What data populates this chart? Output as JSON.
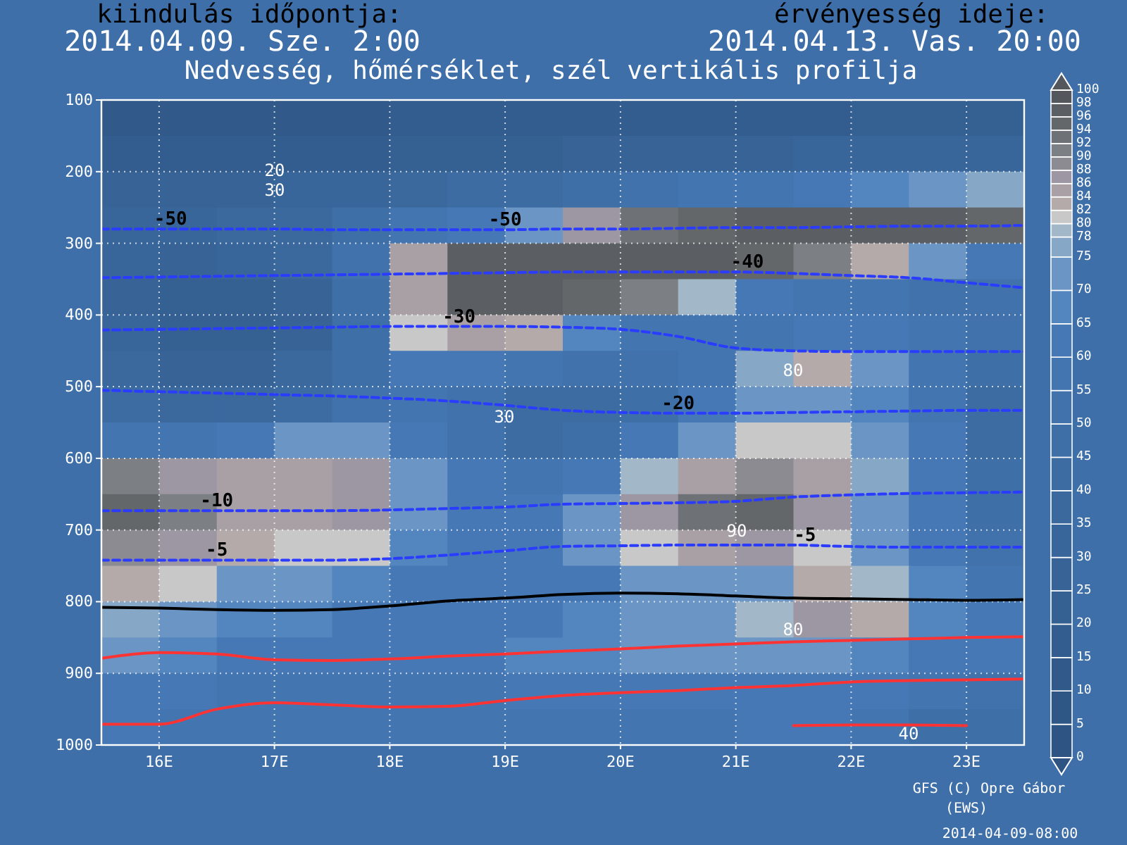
{
  "chart_data": [
    {
      "type": "heatmap",
      "title": "Nedvesség, hőmérséklet, szél vertikális profilja",
      "annotations": [
        "kiindulás időpontja:",
        "2014.04.09. Sze. 2:00",
        "érvényesség ideje:",
        "2014.04.13. Vas. 20:00",
        "GFS (C) Opre Gábor",
        "(EWS)",
        "2014-04-09-08:00",
        "20",
        "30",
        "30",
        "80",
        "90",
        "80",
        "40"
      ],
      "categories": [
        null,
        null,
        null,
        null,
        null,
        null,
        null,
        null,
        null,
        null,
        null,
        null,
        null,
        null,
        null,
        null
      ],
      "y_categories": [
        null,
        null,
        null,
        null,
        null,
        null,
        null,
        null,
        null,
        null,
        null,
        null,
        null,
        null,
        null,
        null,
        null,
        null
      ],
      "cells": [
        [
          12,
          12,
          12,
          12,
          13,
          15,
          15,
          15,
          15,
          16,
          18,
          18,
          18,
          20,
          20,
          20
        ],
        [
          16,
          16,
          16,
          17,
          18,
          20,
          22,
          22,
          25,
          26,
          28,
          28,
          30,
          30,
          32,
          34
        ],
        [
          28,
          28,
          28,
          30,
          32,
          35,
          40,
          42,
          45,
          50,
          55,
          58,
          62,
          65,
          70,
          75
        ],
        [
          34,
          34,
          35,
          38,
          48,
          55,
          62,
          70,
          86,
          92,
          95,
          96,
          96,
          96,
          96,
          94
        ],
        [
          30,
          28,
          30,
          35,
          50,
          84,
          96,
          97,
          97,
          96,
          96,
          95,
          90,
          82,
          72,
          62
        ],
        [
          28,
          20,
          20,
          28,
          45,
          84,
          96,
          96,
          94,
          90,
          78,
          62,
          58,
          55,
          52,
          50
        ],
        [
          32,
          20,
          20,
          28,
          45,
          80,
          84,
          82,
          65,
          55,
          55,
          58,
          62,
          60,
          55,
          50
        ],
        [
          36,
          28,
          28,
          35,
          48,
          60,
          62,
          55,
          50,
          52,
          58,
          75,
          82,
          72,
          55,
          48
        ],
        [
          42,
          38,
          36,
          40,
          52,
          56,
          52,
          42,
          40,
          48,
          60,
          72,
          74,
          68,
          58,
          42
        ],
        [
          55,
          58,
          62,
          70,
          72,
          60,
          50,
          42,
          45,
          62,
          72,
          80,
          80,
          72,
          62,
          44
        ],
        [
          90,
          86,
          84,
          85,
          86,
          70,
          62,
          55,
          62,
          78,
          84,
          88,
          84,
          76,
          64,
          46
        ],
        [
          95,
          90,
          84,
          85,
          86,
          70,
          64,
          60,
          72,
          86,
          92,
          94,
          86,
          74,
          62,
          48
        ],
        [
          88,
          86,
          82,
          80,
          80,
          66,
          62,
          60,
          70,
          80,
          84,
          86,
          80,
          70,
          62,
          52
        ],
        [
          82,
          80,
          74,
          70,
          68,
          64,
          62,
          60,
          64,
          70,
          72,
          74,
          82,
          78,
          66,
          58
        ],
        [
          76,
          72,
          68,
          66,
          64,
          62,
          62,
          64,
          66,
          70,
          72,
          78,
          86,
          82,
          68,
          62
        ],
        [
          70,
          66,
          64,
          64,
          62,
          62,
          62,
          66,
          68,
          70,
          72,
          72,
          72,
          68,
          64,
          60
        ],
        [
          64,
          60,
          58,
          58,
          58,
          58,
          58,
          60,
          62,
          64,
          64,
          64,
          63,
          60,
          58,
          54
        ],
        [
          60,
          56,
          55,
          55,
          55,
          55,
          55,
          56,
          57,
          58,
          58,
          60,
          62,
          55,
          46,
          45
        ]
      ],
      "clim": [
        0,
        100
      ],
      "cticks": [
        0,
        5,
        10,
        15,
        20,
        25,
        30,
        35,
        40,
        45,
        50,
        55,
        60,
        65,
        70,
        75,
        78,
        80,
        82,
        84,
        86,
        88,
        90,
        92,
        94,
        96,
        98,
        100
      ],
      "colors": [
        "#2d5482",
        "#2f5786",
        "#315a8a",
        "#335d8e",
        "#356092",
        "#376396",
        "#39669a",
        "#3b699e",
        "#3d6ca2",
        "#3f6fa7",
        "#4172ab",
        "#4375b0",
        "#4678b5",
        "#5385be",
        "#6a95c4",
        "#86a7c6",
        "#a2b7c8",
        "#c8c8c8",
        "#b3aaa9",
        "#a9a0a5",
        "#9c97a2",
        "#8c8b92",
        "#7c7f84",
        "#6e7276",
        "#63676a",
        "#5b5f63",
        "#54585c"
      ]
    },
    {
      "type": "line",
      "x": [
        15.5,
        16,
        16.5,
        17,
        17.5,
        18,
        18.5,
        19,
        19.5,
        20,
        20.5,
        21,
        21.5,
        22,
        22.5,
        23,
        23.5
      ],
      "xlim": [
        15.5,
        23.5
      ],
      "xticks": [
        {
          "value": 16,
          "label": "16E"
        },
        {
          "value": 17,
          "label": "17E"
        },
        {
          "value": 18,
          "label": "18E"
        },
        {
          "value": 19,
          "label": "19E"
        },
        {
          "value": 20,
          "label": "20E"
        },
        {
          "value": 21,
          "label": "21E"
        },
        {
          "value": 22,
          "label": "22E"
        },
        {
          "value": 23,
          "label": "23E"
        }
      ],
      "ylim": [
        1000,
        100
      ],
      "yticks": [
        100,
        200,
        300,
        400,
        500,
        600,
        700,
        800,
        900,
        1000
      ],
      "grid": true,
      "annotations": [
        {
          "text": "-50",
          "x": 16.1,
          "y": 280
        },
        {
          "text": "-50",
          "x": 19.0,
          "y": 281
        },
        {
          "text": "-40",
          "x": 21.1,
          "y": 340
        },
        {
          "text": "-30",
          "x": 18.6,
          "y": 416
        },
        {
          "text": "-20",
          "x": 20.5,
          "y": 537
        },
        {
          "text": "-10",
          "x": 16.5,
          "y": 673
        },
        {
          "text": "-5",
          "x": 16.5,
          "y": 742
        },
        {
          "text": "-5",
          "x": 21.6,
          "y": 721
        }
      ],
      "series": [
        {
          "type": "line",
          "color": "#2a3cff",
          "line_style": "dashed",
          "values": [
            280,
            280,
            280,
            280,
            281,
            281,
            281,
            281,
            280,
            280,
            279,
            278,
            278,
            277,
            276,
            276,
            275
          ]
        },
        {
          "type": "line",
          "color": "#2a3cff",
          "line_style": "dashed",
          "values": [
            348,
            347,
            346,
            345,
            344,
            343,
            342,
            341,
            340,
            340,
            340,
            340,
            342,
            345,
            348,
            355,
            362
          ]
        },
        {
          "type": "line",
          "color": "#2a3cff",
          "line_style": "dashed",
          "values": [
            421,
            420,
            419,
            418,
            417,
            416,
            416,
            416,
            417,
            420,
            430,
            446,
            450,
            451,
            451,
            451,
            451
          ]
        },
        {
          "type": "line",
          "color": "#2a3cff",
          "line_style": "dashed",
          "values": [
            505,
            507,
            509,
            511,
            513,
            516,
            520,
            526,
            533,
            536,
            537,
            537,
            536,
            535,
            534,
            533,
            533
          ]
        },
        {
          "type": "line",
          "color": "#2a3cff",
          "line_style": "dashed",
          "values": [
            673,
            673,
            673,
            673,
            673,
            672,
            670,
            668,
            664,
            663,
            662,
            660,
            654,
            651,
            649,
            648,
            647
          ]
        },
        {
          "type": "line",
          "color": "#2a3cff",
          "line_style": "dashed",
          "values": [
            742,
            742,
            742,
            742,
            742,
            740,
            735,
            729,
            723,
            722,
            721,
            721,
            721,
            723,
            724,
            724,
            724
          ]
        },
        {
          "type": "line",
          "color": "#000000",
          "line_style": "solid",
          "values": [
            808,
            809,
            811,
            812,
            811,
            806,
            799,
            795,
            790,
            788,
            789,
            792,
            795,
            796,
            797,
            798,
            797
          ]
        },
        {
          "type": "line",
          "color": "#ff3333",
          "line_style": "solid",
          "values": [
            879,
            871,
            873,
            881,
            882,
            880,
            876,
            873,
            869,
            866,
            862,
            859,
            856,
            854,
            852,
            850,
            849
          ]
        },
        {
          "type": "line",
          "color": "#ff3333",
          "line_style": "solid",
          "values": [
            971,
            971,
            950,
            941,
            944,
            947,
            946,
            938,
            931,
            927,
            924,
            920,
            917,
            912,
            910,
            909,
            908
          ]
        },
        {
          "type": "line",
          "color": "#ff3333",
          "line_style": "solid",
          "values": [
            null,
            null,
            null,
            null,
            null,
            null,
            null,
            null,
            null,
            null,
            null,
            null,
            973,
            972,
            972,
            973,
            null
          ]
        }
      ]
    }
  ]
}
